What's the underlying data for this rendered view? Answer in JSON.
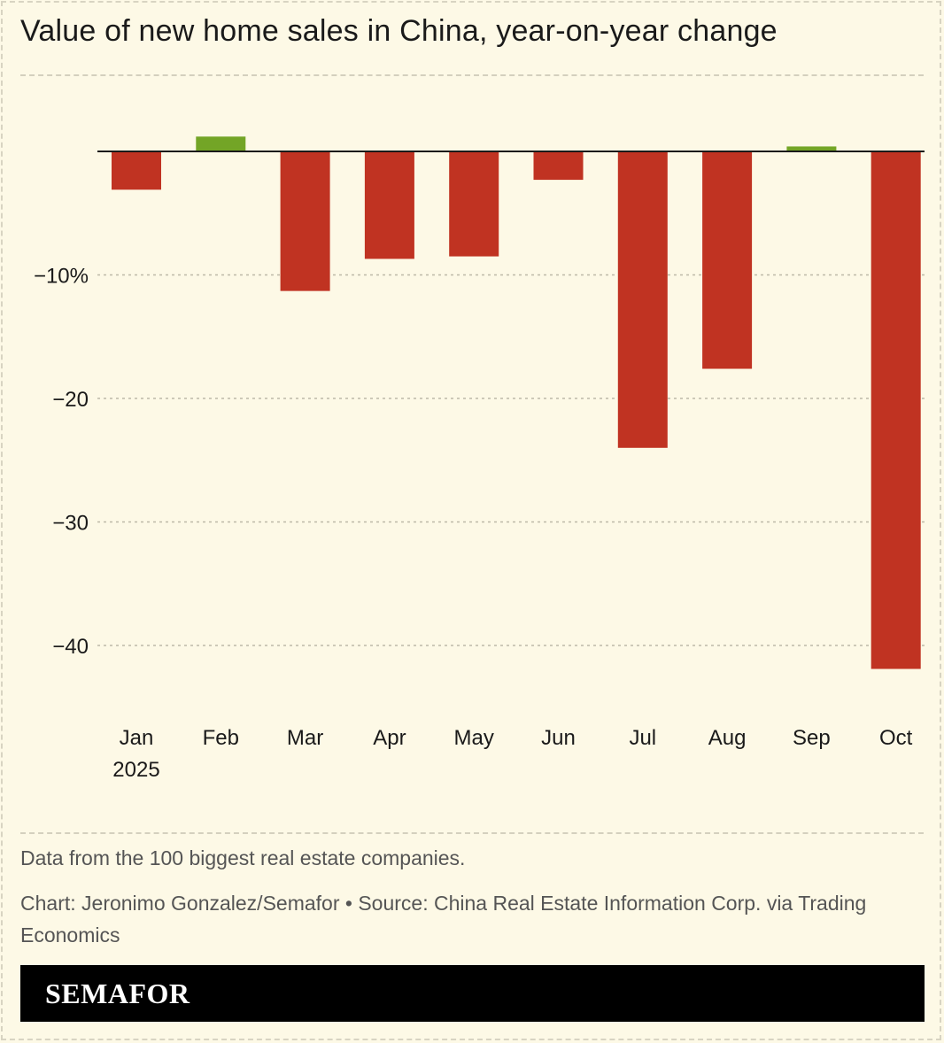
{
  "title": "Value of new home sales in China, year-on-year change",
  "note": "Data from the 100 biggest real estate companies.",
  "credit": "Chart: Jeronimo Gonzalez/Semafor • Source: China Real Estate Information Corp. via Trading Economics",
  "logo": "SEMAFOR",
  "colors": {
    "negative": "#c03322",
    "positive": "#73a526",
    "background": "#fdf9e6"
  },
  "chart_data": {
    "type": "bar",
    "categories": [
      "Jan",
      "Feb",
      "Mar",
      "Apr",
      "May",
      "Jun",
      "Jul",
      "Aug",
      "Sep",
      "Oct"
    ],
    "category_sublabels": [
      "2025",
      "",
      "",
      "",
      "",
      "",
      "",
      "",
      "",
      ""
    ],
    "values": [
      -3.1,
      1.2,
      -11.3,
      -8.7,
      -8.5,
      -2.3,
      -24.0,
      -17.6,
      0.4,
      -41.9
    ],
    "yticks": [
      -10,
      -20,
      -30,
      -40
    ],
    "ytick_labels": [
      "−10%",
      "−20",
      "−30",
      "−40"
    ],
    "ylim": [
      -45,
      6
    ],
    "grid": true,
    "xlabel": "",
    "ylabel": ""
  }
}
